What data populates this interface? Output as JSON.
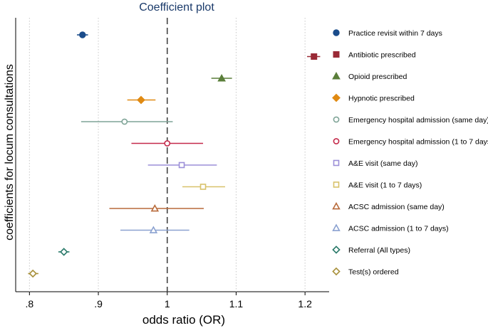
{
  "chart_data": {
    "type": "scatter",
    "title": "Coefficient plot",
    "xlabel": "odds ratio (OR)",
    "ylabel": "coefficients for locum consultations",
    "xlim": [
      0.78,
      1.235
    ],
    "xticks": [
      {
        "value": 0.8,
        "label": ".8"
      },
      {
        "value": 0.9,
        "label": ".9"
      },
      {
        "value": 1.0,
        "label": "1"
      },
      {
        "value": 1.1,
        "label": "1.1"
      },
      {
        "value": 1.2,
        "label": "1.2"
      }
    ],
    "grid": "vertical dotted",
    "reference_line": 1.0,
    "legend_position": "right",
    "series": [
      {
        "name": "Practice revisit within 7 days",
        "estimate": 0.877,
        "ci": [
          0.869,
          0.885
        ],
        "marker": "circle-filled",
        "color": "#1a4c8b"
      },
      {
        "name": "Antibiotic prescribed",
        "estimate": 1.213,
        "ci": [
          1.203,
          1.222
        ],
        "marker": "square-filled",
        "color": "#9a2a36"
      },
      {
        "name": "Opioid prescribed",
        "estimate": 1.079,
        "ci": [
          1.064,
          1.094
        ],
        "marker": "triangle-filled",
        "color": "#5a7e3a"
      },
      {
        "name": "Hypnotic prescribed",
        "estimate": 0.962,
        "ci": [
          0.942,
          0.983
        ],
        "marker": "diamond-filled",
        "color": "#e08a12"
      },
      {
        "name": "Emergency hospital admission (same day)",
        "estimate": 0.938,
        "ci": [
          0.875,
          1.008
        ],
        "marker": "circle-open",
        "color": "#7fa497"
      },
      {
        "name": "Emergency hospital admission (1 to 7 days)",
        "estimate": 1.0,
        "ci": [
          0.948,
          1.052
        ],
        "marker": "circle-open",
        "color": "#c4294a"
      },
      {
        "name": "A&E visit (same day)",
        "estimate": 1.021,
        "ci": [
          0.972,
          1.072
        ],
        "marker": "square-open",
        "color": "#9c8fd8"
      },
      {
        "name": "A&E visit (1 to 7 days)",
        "estimate": 1.052,
        "ci": [
          1.022,
          1.084
        ],
        "marker": "square-open",
        "color": "#d8c26a"
      },
      {
        "name": "ACSC admission (same day)",
        "estimate": 0.982,
        "ci": [
          0.916,
          1.053
        ],
        "marker": "triangle-open",
        "color": "#b86a3a"
      },
      {
        "name": "ACSC admission (1 to 7 days)",
        "estimate": 0.98,
        "ci": [
          0.932,
          1.032
        ],
        "marker": "triangle-open",
        "color": "#8aa1d0"
      },
      {
        "name": "Referral (All types)",
        "estimate": 0.85,
        "ci": [
          0.842,
          0.858
        ],
        "marker": "diamond-open",
        "color": "#2a7a6a"
      },
      {
        "name": "Test(s) ordered",
        "estimate": 0.805,
        "ci": [
          0.798,
          0.813
        ],
        "marker": "diamond-open",
        "color": "#a8903a"
      }
    ]
  }
}
